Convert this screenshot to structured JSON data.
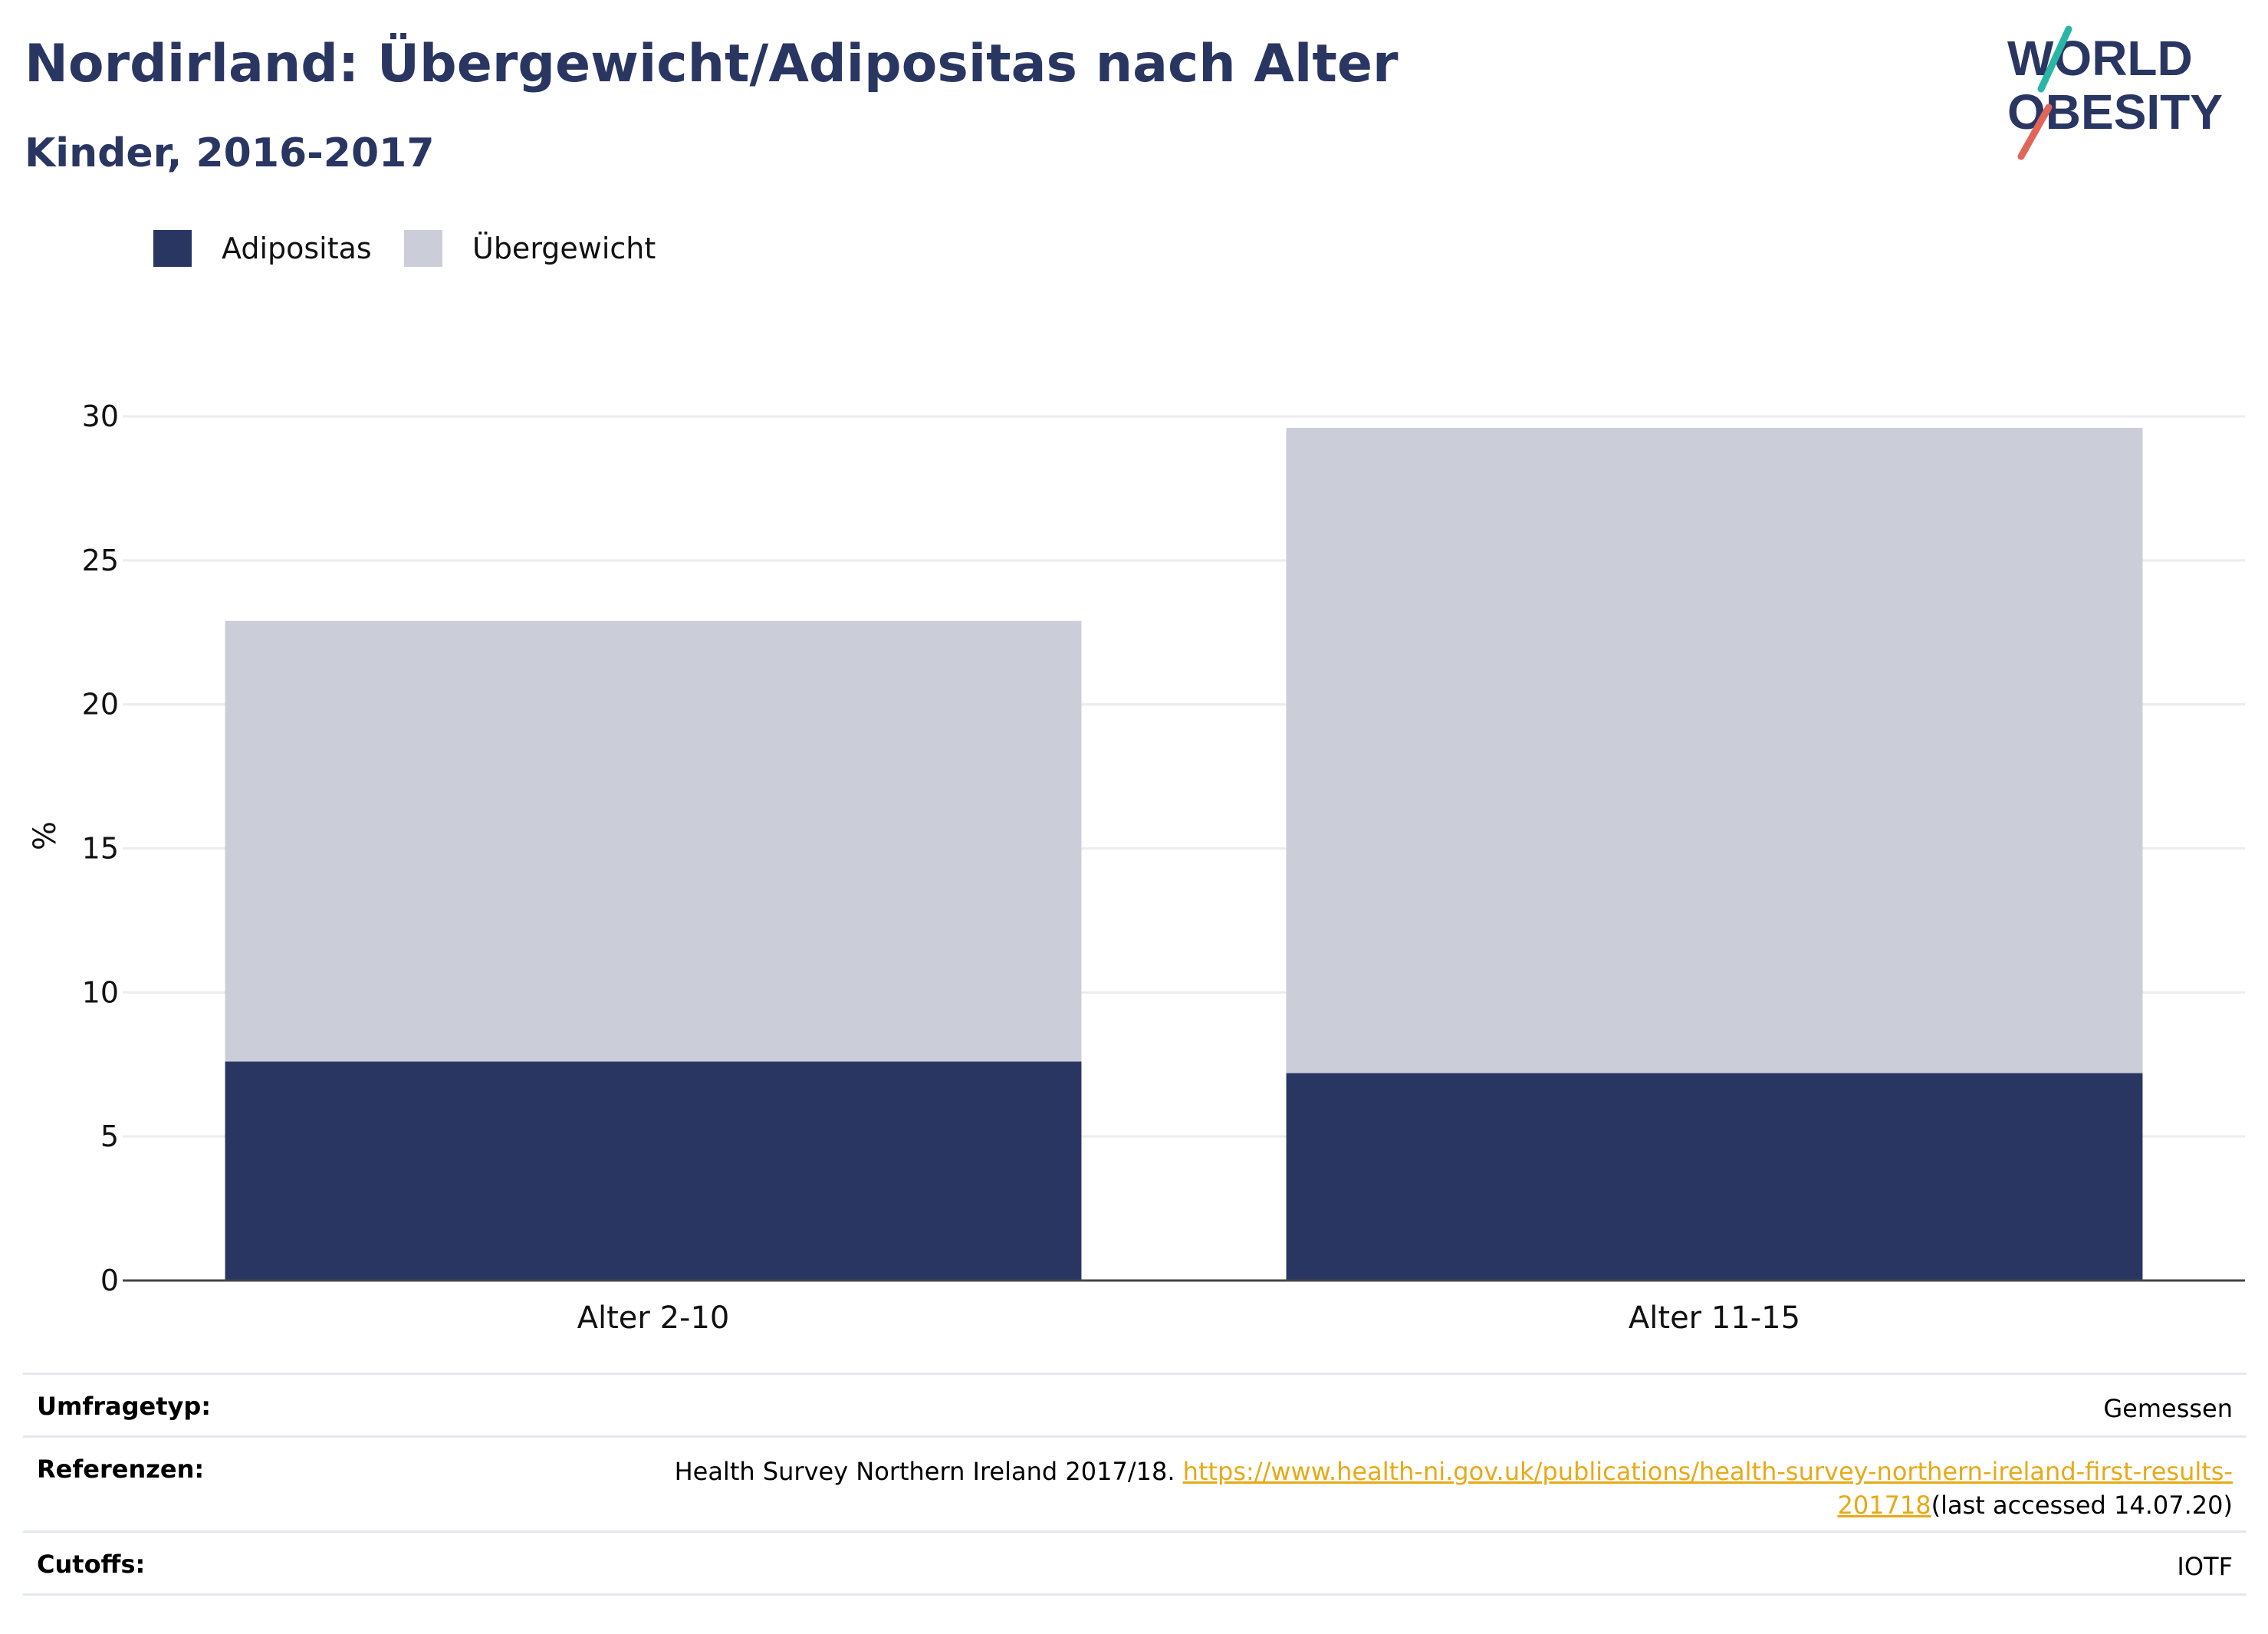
{
  "title": "Nordirland: Übergewicht/Adipositas nach Alter",
  "subtitle": "Kinder, 2016-2017",
  "logo": {
    "line1": "WORLD",
    "line2": "OBESITY",
    "colors": {
      "text": "#2a3662",
      "accent_teal": "#2bb5a6",
      "accent_coral": "#e0665a"
    }
  },
  "legend": [
    {
      "label": "Adipositas",
      "color": "#2a3662"
    },
    {
      "label": "Übergewicht",
      "color": "#cbcdd8"
    }
  ],
  "chart_data": {
    "type": "bar",
    "stacked": true,
    "categories": [
      "Alter 2-10",
      "Alter 11-15"
    ],
    "series": [
      {
        "name": "Adipositas",
        "color": "#2a3662",
        "values": [
          7.6,
          7.2
        ]
      },
      {
        "name": "Übergewicht",
        "color": "#cbcdd8",
        "values": [
          15.3,
          22.4
        ]
      }
    ],
    "ylabel": "%",
    "ylim": [
      0,
      30
    ],
    "yticks": [
      0,
      5,
      10,
      15,
      20,
      25,
      30
    ],
    "grid": true,
    "legend_position": "top-left"
  },
  "table": {
    "rows": [
      {
        "label": "Umfragetyp:",
        "value": "Gemessen"
      },
      {
        "label": "Referenzen:",
        "value_prefix": "Health Survey Northern Ireland 2017/18. ",
        "link_line1": "https://www.health-ni.gov.uk/publications/health-survey-northern-ireland-first-results-",
        "link_line2": "201718",
        "value_suffix": "(last accessed 14.07.20)"
      },
      {
        "label": "Cutoffs:",
        "value": "IOTF"
      }
    ]
  }
}
